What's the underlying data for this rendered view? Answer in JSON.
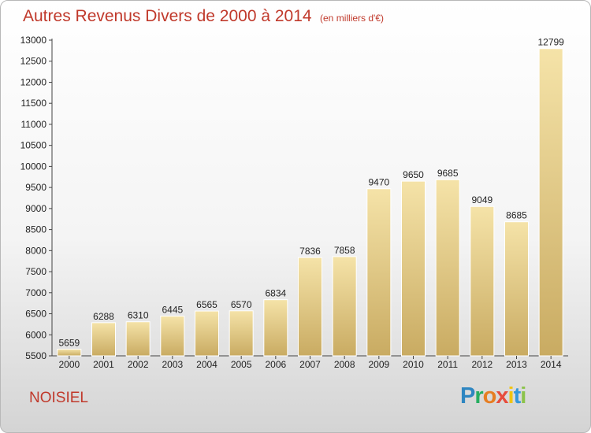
{
  "title": "Autres Revenus Divers de 2000 à 2014",
  "unit": "(en milliers d'€)",
  "commune": "NOISIEL",
  "logo": {
    "letters": [
      "P",
      "r",
      "o",
      "x",
      "i",
      "t",
      "i"
    ],
    "colors": [
      "#2e86c1",
      "#27ae60",
      "#e67e22",
      "#e74c3c",
      "#f1c40f",
      "#3498db",
      "#8bc34a"
    ]
  },
  "colors": {
    "title": "#c0392b",
    "bar_light": "#f5e3a8",
    "bar_dark": "#c9ab62",
    "bar_edge": "#ffffff"
  },
  "chart_data": {
    "type": "bar",
    "title": "Autres Revenus Divers de 2000 à 2014",
    "subtitle": "(en milliers d'€)",
    "categories": [
      "2000",
      "2001",
      "2002",
      "2003",
      "2004",
      "2005",
      "2006",
      "2007",
      "2008",
      "2009",
      "2010",
      "2011",
      "2012",
      "2013",
      "2014"
    ],
    "values": [
      5659,
      6288,
      6310,
      6445,
      6565,
      6570,
      6834,
      7836,
      7858,
      9470,
      9650,
      9685,
      9049,
      8685,
      12799
    ],
    "ylim": [
      5500,
      13000
    ],
    "yticks": [
      5500,
      6000,
      6500,
      7000,
      7500,
      8000,
      8500,
      9000,
      9500,
      10000,
      10500,
      11000,
      11500,
      12000,
      12500,
      13000
    ],
    "grid": false,
    "data_labels": true
  }
}
